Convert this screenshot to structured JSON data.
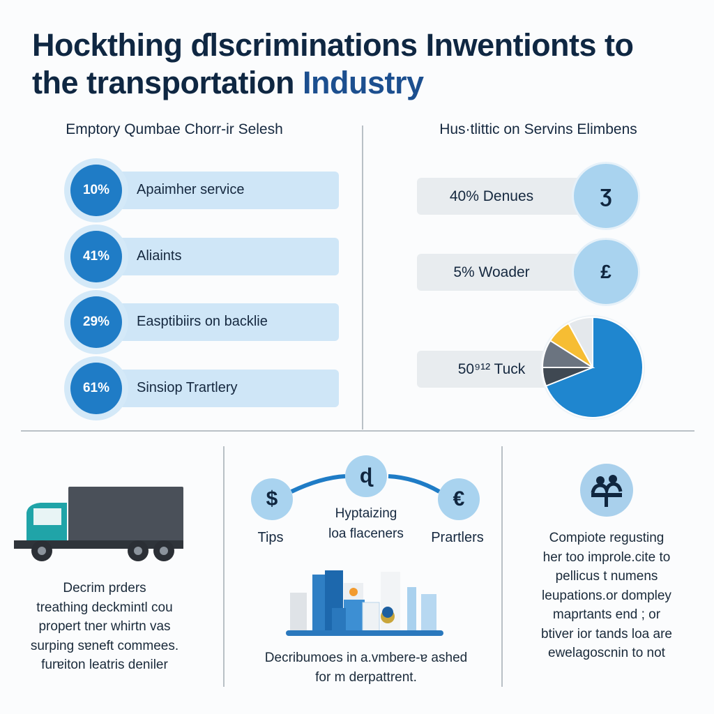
{
  "title": {
    "line1": "Hockthing ɗlscriminations Inwentionts to",
    "line2_a": "the transportation ",
    "line2_b": "Industry"
  },
  "left_section": {
    "heading": "Emptory Qumbae Chorr-ir Selesh",
    "items": [
      {
        "percent": "10%",
        "label": "Apaimher service"
      },
      {
        "percent": "41%",
        "label": "Aliaints"
      },
      {
        "percent": "29%",
        "label": "Easptibiirs on backlie"
      },
      {
        "percent": "61%",
        "label": "Sinsiop Trartlery"
      }
    ]
  },
  "right_section": {
    "heading": "Hus·tlittic on Servins Elimbens",
    "items": [
      {
        "label": "40% Denues",
        "icon": "Ʒ",
        "icon_name": "currency-icon"
      },
      {
        "label": "5% Woader",
        "icon": "£",
        "icon_name": "pound-icon"
      },
      {
        "label": "50⁹¹² Tuck",
        "icon_name": "pie-chart-icon"
      }
    ],
    "pie_slices": [
      {
        "value": 69,
        "color": "#1f86cf"
      },
      {
        "value": 6,
        "color": "#3f4852"
      },
      {
        "value": 9,
        "color": "#6b7480"
      },
      {
        "value": 8,
        "color": "#f6bd33"
      },
      {
        "value": 8,
        "color": "#e4e8ec"
      }
    ]
  },
  "bottom_left": {
    "lines": [
      "Decrim prders",
      "treathing deckmintl cou",
      "propert tner whirtn vas",
      "surping sɐneft commees.",
      "furɐiton leatris deniler"
    ]
  },
  "bottom_middle": {
    "nodes": [
      {
        "icon": "$",
        "label": "Tips"
      },
      {
        "icon": "ɖ",
        "label_lines": [
          "Hyptaizing",
          "loa flaceners"
        ]
      },
      {
        "icon": "€",
        "label": "Prartlers"
      }
    ],
    "caption_lines": [
      "Decribumoes in a.vmbere-ɐ ashed",
      "for m derpattrent."
    ]
  },
  "bottom_right": {
    "lines": [
      "Compiote regusting",
      "her too improle.cite to",
      "pellicus t numens",
      "leupations.or dompley",
      "maprtants end ; or",
      "btiver ior tands loa are",
      "ewelagoscnin to not"
    ]
  },
  "colors": {
    "navy": "#0f2742",
    "blue": "#1f7cc6",
    "light_blue": "#cfe6f7",
    "gray_bar": "#e8ecef"
  }
}
